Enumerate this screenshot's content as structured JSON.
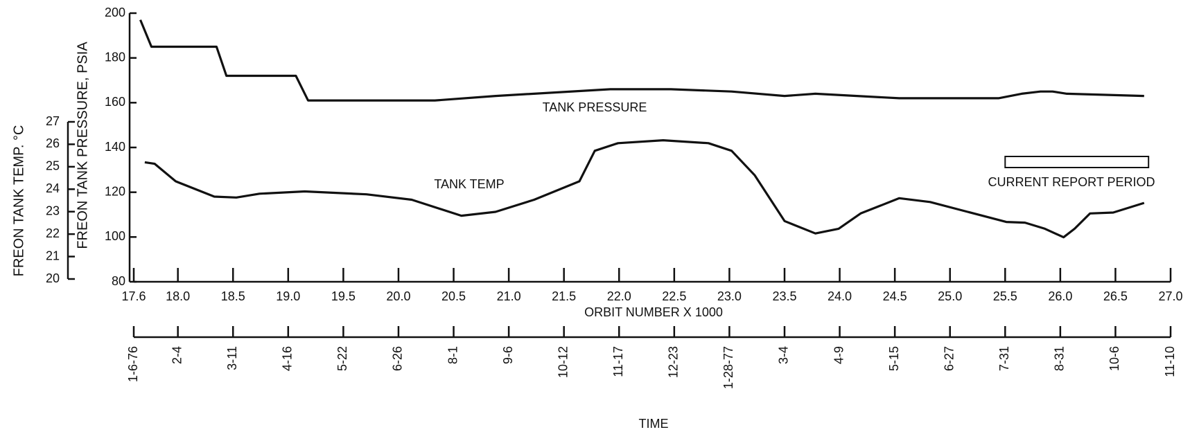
{
  "chart_data": {
    "type": "line",
    "xlabel": "ORBIT NUMBER X 1000",
    "ylabel": "FREON TANK PRESSURE, PSIA",
    "y2label": "FREON TANK TEMP. °C",
    "time_label": "TIME",
    "xlim": [
      17.6,
      27.0
    ],
    "xticks": [
      17.6,
      {
        "value": 18,
        "label": "18.0"
      },
      18.5,
      {
        "value": 19,
        "label": "19.0"
      },
      19.5,
      {
        "value": 20,
        "label": "20.0"
      },
      20.5,
      {
        "value": 21,
        "label": "21.0"
      },
      21.5,
      {
        "value": 22,
        "label": "22.0"
      },
      22.5,
      {
        "value": 23,
        "label": "23.0"
      },
      23.5,
      {
        "value": 24,
        "label": "24.0"
      },
      24.5,
      {
        "value": 25,
        "label": "25.0"
      },
      25.5,
      {
        "value": 26,
        "label": "26.0"
      },
      26.5,
      {
        "value": 27,
        "label": "27.0"
      }
    ],
    "time_ticks": [
      "1-6-76",
      "2-4",
      "3-11",
      "4-16",
      "5-22",
      "6-26",
      "8-1",
      "9-6",
      "10-12",
      "11-17",
      "12-23",
      "1-28-77",
      "3-4",
      "4-9",
      "5-15",
      "6-27",
      "7-31",
      "8-31",
      "10-6",
      "11-10"
    ],
    "ylim": [
      80,
      200
    ],
    "yticks": [
      80,
      100,
      120,
      140,
      160,
      180,
      200
    ],
    "y2lim": [
      20,
      27
    ],
    "y2ticks": [
      20,
      21,
      22,
      23,
      24,
      25,
      26,
      27
    ],
    "report_period": {
      "label": "CURRENT REPORT PERIOD",
      "x": [
        25.5,
        26.8
      ]
    },
    "series": [
      {
        "name": "TANK PRESSURE",
        "color": "#111111",
        "axis": "y",
        "x": [
          17.66,
          17.76,
          18.35,
          18.44,
          19.07,
          19.18,
          20.33,
          20.88,
          21.92,
          22.47,
          23.02,
          23.5,
          23.78,
          24.54,
          25.44,
          25.65,
          25.82,
          25.93,
          26.06,
          26.76
        ],
        "values": [
          197,
          185,
          185,
          172,
          172,
          161,
          161,
          163,
          166,
          166,
          165,
          163,
          164,
          162,
          162,
          164,
          165,
          165,
          164,
          163
        ]
      },
      {
        "name": "TANK TEMP",
        "color": "#111111",
        "axis": "y2",
        "x": [
          17.7,
          17.79,
          17.98,
          18.33,
          18.53,
          18.74,
          19.15,
          19.71,
          20.12,
          20.57,
          20.88,
          21.23,
          21.64,
          21.78,
          21.99,
          22.4,
          22.81,
          23.02,
          23.23,
          23.5,
          23.78,
          23.99,
          24.19,
          24.54,
          24.82,
          25.16,
          25.51,
          25.68,
          25.86,
          26.03,
          26.13,
          26.27,
          26.48,
          26.76
        ],
        "values": [
          25.2,
          25.13,
          24.35,
          23.67,
          23.63,
          23.8,
          23.9,
          23.77,
          23.53,
          22.82,
          22.99,
          23.53,
          24.35,
          25.71,
          26.05,
          26.18,
          26.05,
          25.71,
          24.62,
          22.58,
          22.03,
          22.24,
          22.92,
          23.6,
          23.43,
          22.99,
          22.54,
          22.51,
          22.24,
          21.86,
          22.24,
          22.92,
          22.96,
          23.39
        ]
      }
    ]
  }
}
